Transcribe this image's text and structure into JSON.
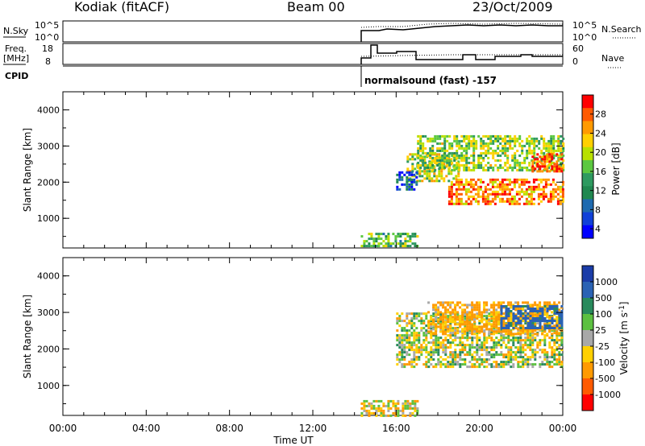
{
  "header": {
    "station": "Kodiak (fitACF)",
    "beam": "Beam 00",
    "date": "23/Oct/2009"
  },
  "panels": {
    "nsky_label": "N.Sky",
    "nsearch_label": "N.Search",
    "nsky_ticks": [
      "10^5",
      "10^0"
    ],
    "nsky_ticks_right": [
      "10^5",
      "10^0"
    ],
    "freq_label_1": "Freq.",
    "freq_label_2": "[MHz]",
    "freq_ticks": [
      "18",
      "8"
    ],
    "nave_label": "Nave",
    "nave_ticks": [
      "60",
      "0"
    ],
    "cpid_label": "CPID",
    "cpid_text": "normalsound (fast) -157"
  },
  "colorbars": {
    "power": {
      "label": "Power [dB]",
      "ticks": [
        "28",
        "24",
        "20",
        "16",
        "12",
        "8",
        "4"
      ],
      "colors": [
        "#ff0000",
        "#ff5a00",
        "#ff9a00",
        "#ffd000",
        "#b8e000",
        "#5cc840",
        "#2e9a60",
        "#208850",
        "#1e6ab0",
        "#1040d8",
        "#0000ff"
      ]
    },
    "velocity": {
      "label_main": "Velocity",
      "label_units": "[m s",
      "label_exp": "-1",
      "label_close": "]",
      "ticks": [
        "1000",
        "500",
        "100",
        "25",
        "-25",
        "-100",
        "-500",
        "-1000"
      ],
      "colors": [
        "#1a3ca8",
        "#2a62b4",
        "#288a5c",
        "#5cc040",
        "#a8a8a8",
        "#ffd000",
        "#ff9a00",
        "#ff5a00",
        "#ff0000"
      ]
    }
  },
  "chart_data": [
    {
      "type": "heatmap",
      "title": "Power",
      "xlabel": "Time UT",
      "ylabel": "Slant Range [km]",
      "xticks": [
        "00:00",
        "04:00",
        "08:00",
        "12:00",
        "16:00",
        "20:00",
        "00:00"
      ],
      "yticks": [
        "1000",
        "2000",
        "3000",
        "4000"
      ],
      "xlim_hours": [
        0,
        24
      ],
      "ylim_km": [
        180,
        4500
      ],
      "colorbar_label": "Power [dB]",
      "colorbar_range_db": [
        0,
        30
      ],
      "regions": [
        {
          "t0": 14.3,
          "t1": 17.0,
          "r0": 200,
          "r1": 600,
          "value_db": 14
        },
        {
          "t0": 16.5,
          "t1": 19.0,
          "r0": 2000,
          "r1": 2800,
          "value_db": 18
        },
        {
          "t0": 18.5,
          "t1": 24.0,
          "r0": 1400,
          "r1": 2100,
          "value_db": 24
        },
        {
          "t0": 17.0,
          "t1": 24.0,
          "r0": 2300,
          "r1": 3300,
          "value_db": 16
        },
        {
          "t0": 16.0,
          "t1": 17.0,
          "r0": 1800,
          "r1": 2300,
          "value_db": 6
        },
        {
          "t0": 22.5,
          "t1": 24.0,
          "r0": 2300,
          "r1": 2800,
          "value_db": 27
        }
      ]
    },
    {
      "type": "heatmap",
      "title": "Velocity",
      "xlabel": "Time UT",
      "ylabel": "Slant Range [km]",
      "xticks": [
        "00:00",
        "04:00",
        "08:00",
        "12:00",
        "16:00",
        "20:00",
        "00:00"
      ],
      "yticks": [
        "1000",
        "2000",
        "3000",
        "4000"
      ],
      "xlim_hours": [
        0,
        24
      ],
      "ylim_km": [
        180,
        4500
      ],
      "colorbar_label": "Velocity [m s-1]",
      "colorbar_range_ms": [
        -1000,
        1000
      ],
      "regions": [
        {
          "t0": 14.3,
          "t1": 17.0,
          "r0": 200,
          "r1": 600,
          "value_ms": -50
        },
        {
          "t0": 16.0,
          "t1": 24.0,
          "r0": 1500,
          "r1": 3000,
          "value_ms": 0
        },
        {
          "t0": 17.5,
          "t1": 24.0,
          "r0": 2400,
          "r1": 3300,
          "value_ms": -150
        },
        {
          "t0": 21.0,
          "t1": 24.0,
          "r0": 2600,
          "r1": 3200,
          "value_ms": 600
        }
      ]
    }
  ]
}
